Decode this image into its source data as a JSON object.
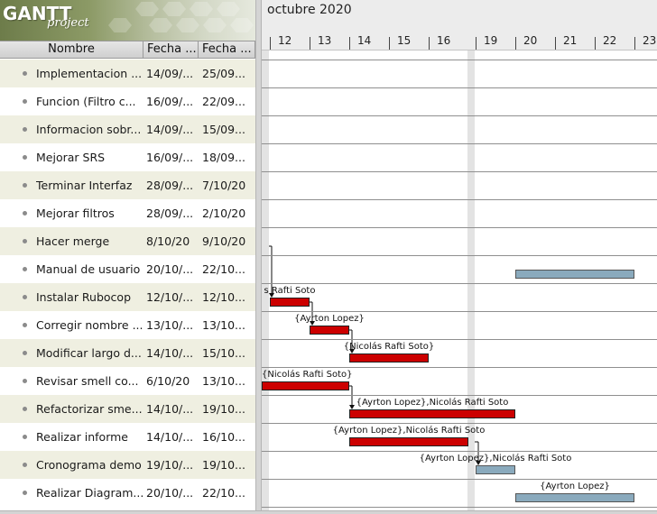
{
  "logo": {
    "brand": "GANTT",
    "sub": "project"
  },
  "table": {
    "headers": {
      "name": "Nombre",
      "start": "Fecha ...",
      "end": "Fecha ..."
    },
    "rows": [
      {
        "name": "Implementacion ...",
        "start": "14/09/...",
        "end": "25/09..."
      },
      {
        "name": "Funcion (Filtro c...",
        "start": "16/09/...",
        "end": "22/09..."
      },
      {
        "name": "Informacion sobr...",
        "start": "14/09/...",
        "end": "15/09..."
      },
      {
        "name": "Mejorar SRS",
        "start": "16/09/...",
        "end": "18/09..."
      },
      {
        "name": "Terminar Interfaz",
        "start": "28/09/...",
        "end": "7/10/20"
      },
      {
        "name": "Mejorar filtros",
        "start": "28/09/...",
        "end": "2/10/20"
      },
      {
        "name": "Hacer merge",
        "start": "8/10/20",
        "end": "9/10/20"
      },
      {
        "name": "Manual de usuario",
        "start": "20/10/...",
        "end": "22/10..."
      },
      {
        "name": "Instalar Rubocop",
        "start": "12/10/...",
        "end": "12/10..."
      },
      {
        "name": "Corregir nombre ...",
        "start": "13/10/...",
        "end": "13/10..."
      },
      {
        "name": "Modificar largo d...",
        "start": "14/10/...",
        "end": "15/10..."
      },
      {
        "name": "Revisar smell co...",
        "start": "6/10/20",
        "end": "13/10..."
      },
      {
        "name": "Refactorizar sme...",
        "start": "14/10/...",
        "end": "19/10..."
      },
      {
        "name": "Realizar informe",
        "start": "14/10/...",
        "end": "16/10..."
      },
      {
        "name": "Cronograma demo",
        "start": "19/10/...",
        "end": "19/10..."
      },
      {
        "name": "Realizar Diagram...",
        "start": "20/10/...",
        "end": "22/10..."
      }
    ]
  },
  "timeline": {
    "month": "octubre 2020",
    "days": [
      "12",
      "13",
      "14",
      "15",
      "16",
      "19",
      "20",
      "21",
      "22",
      "23"
    ]
  },
  "bars": [
    {
      "row": 7,
      "start_day": 20,
      "end_day": 22,
      "color": "blue",
      "label": ""
    },
    {
      "row": 8,
      "start_day": 12,
      "end_day": 12,
      "color": "red",
      "label": "s Rafti Soto"
    },
    {
      "row": 9,
      "start_day": 13,
      "end_day": 13,
      "color": "red",
      "label": "{Ayrton Lopez}"
    },
    {
      "row": 10,
      "start_day": 14,
      "end_day": 15,
      "color": "red",
      "label": "{Nicolás Rafti Soto}"
    },
    {
      "row": 11,
      "start_day": 11.8,
      "end_day": 13,
      "color": "red",
      "label": "{Nicolás Rafti Soto}"
    },
    {
      "row": 12,
      "start_day": 14,
      "end_day": 19,
      "color": "red",
      "label": "{Ayrton Lopez},Nicolás Rafti Soto"
    },
    {
      "row": 13,
      "start_day": 14,
      "end_day": 16,
      "color": "red",
      "label": "{Ayrton Lopez},Nicolás Rafti Soto"
    },
    {
      "row": 14,
      "start_day": 19,
      "end_day": 19,
      "color": "blue",
      "label": "{Ayrton Lopez},Nicolás Rafti Soto"
    },
    {
      "row": 15,
      "start_day": 20,
      "end_day": 22,
      "color": "blue",
      "label": "{Ayrton Lopez}"
    }
  ],
  "colors": {
    "task_red": "#cc0000",
    "task_blue": "#8aaabd",
    "row_alt": "#efefe1"
  }
}
